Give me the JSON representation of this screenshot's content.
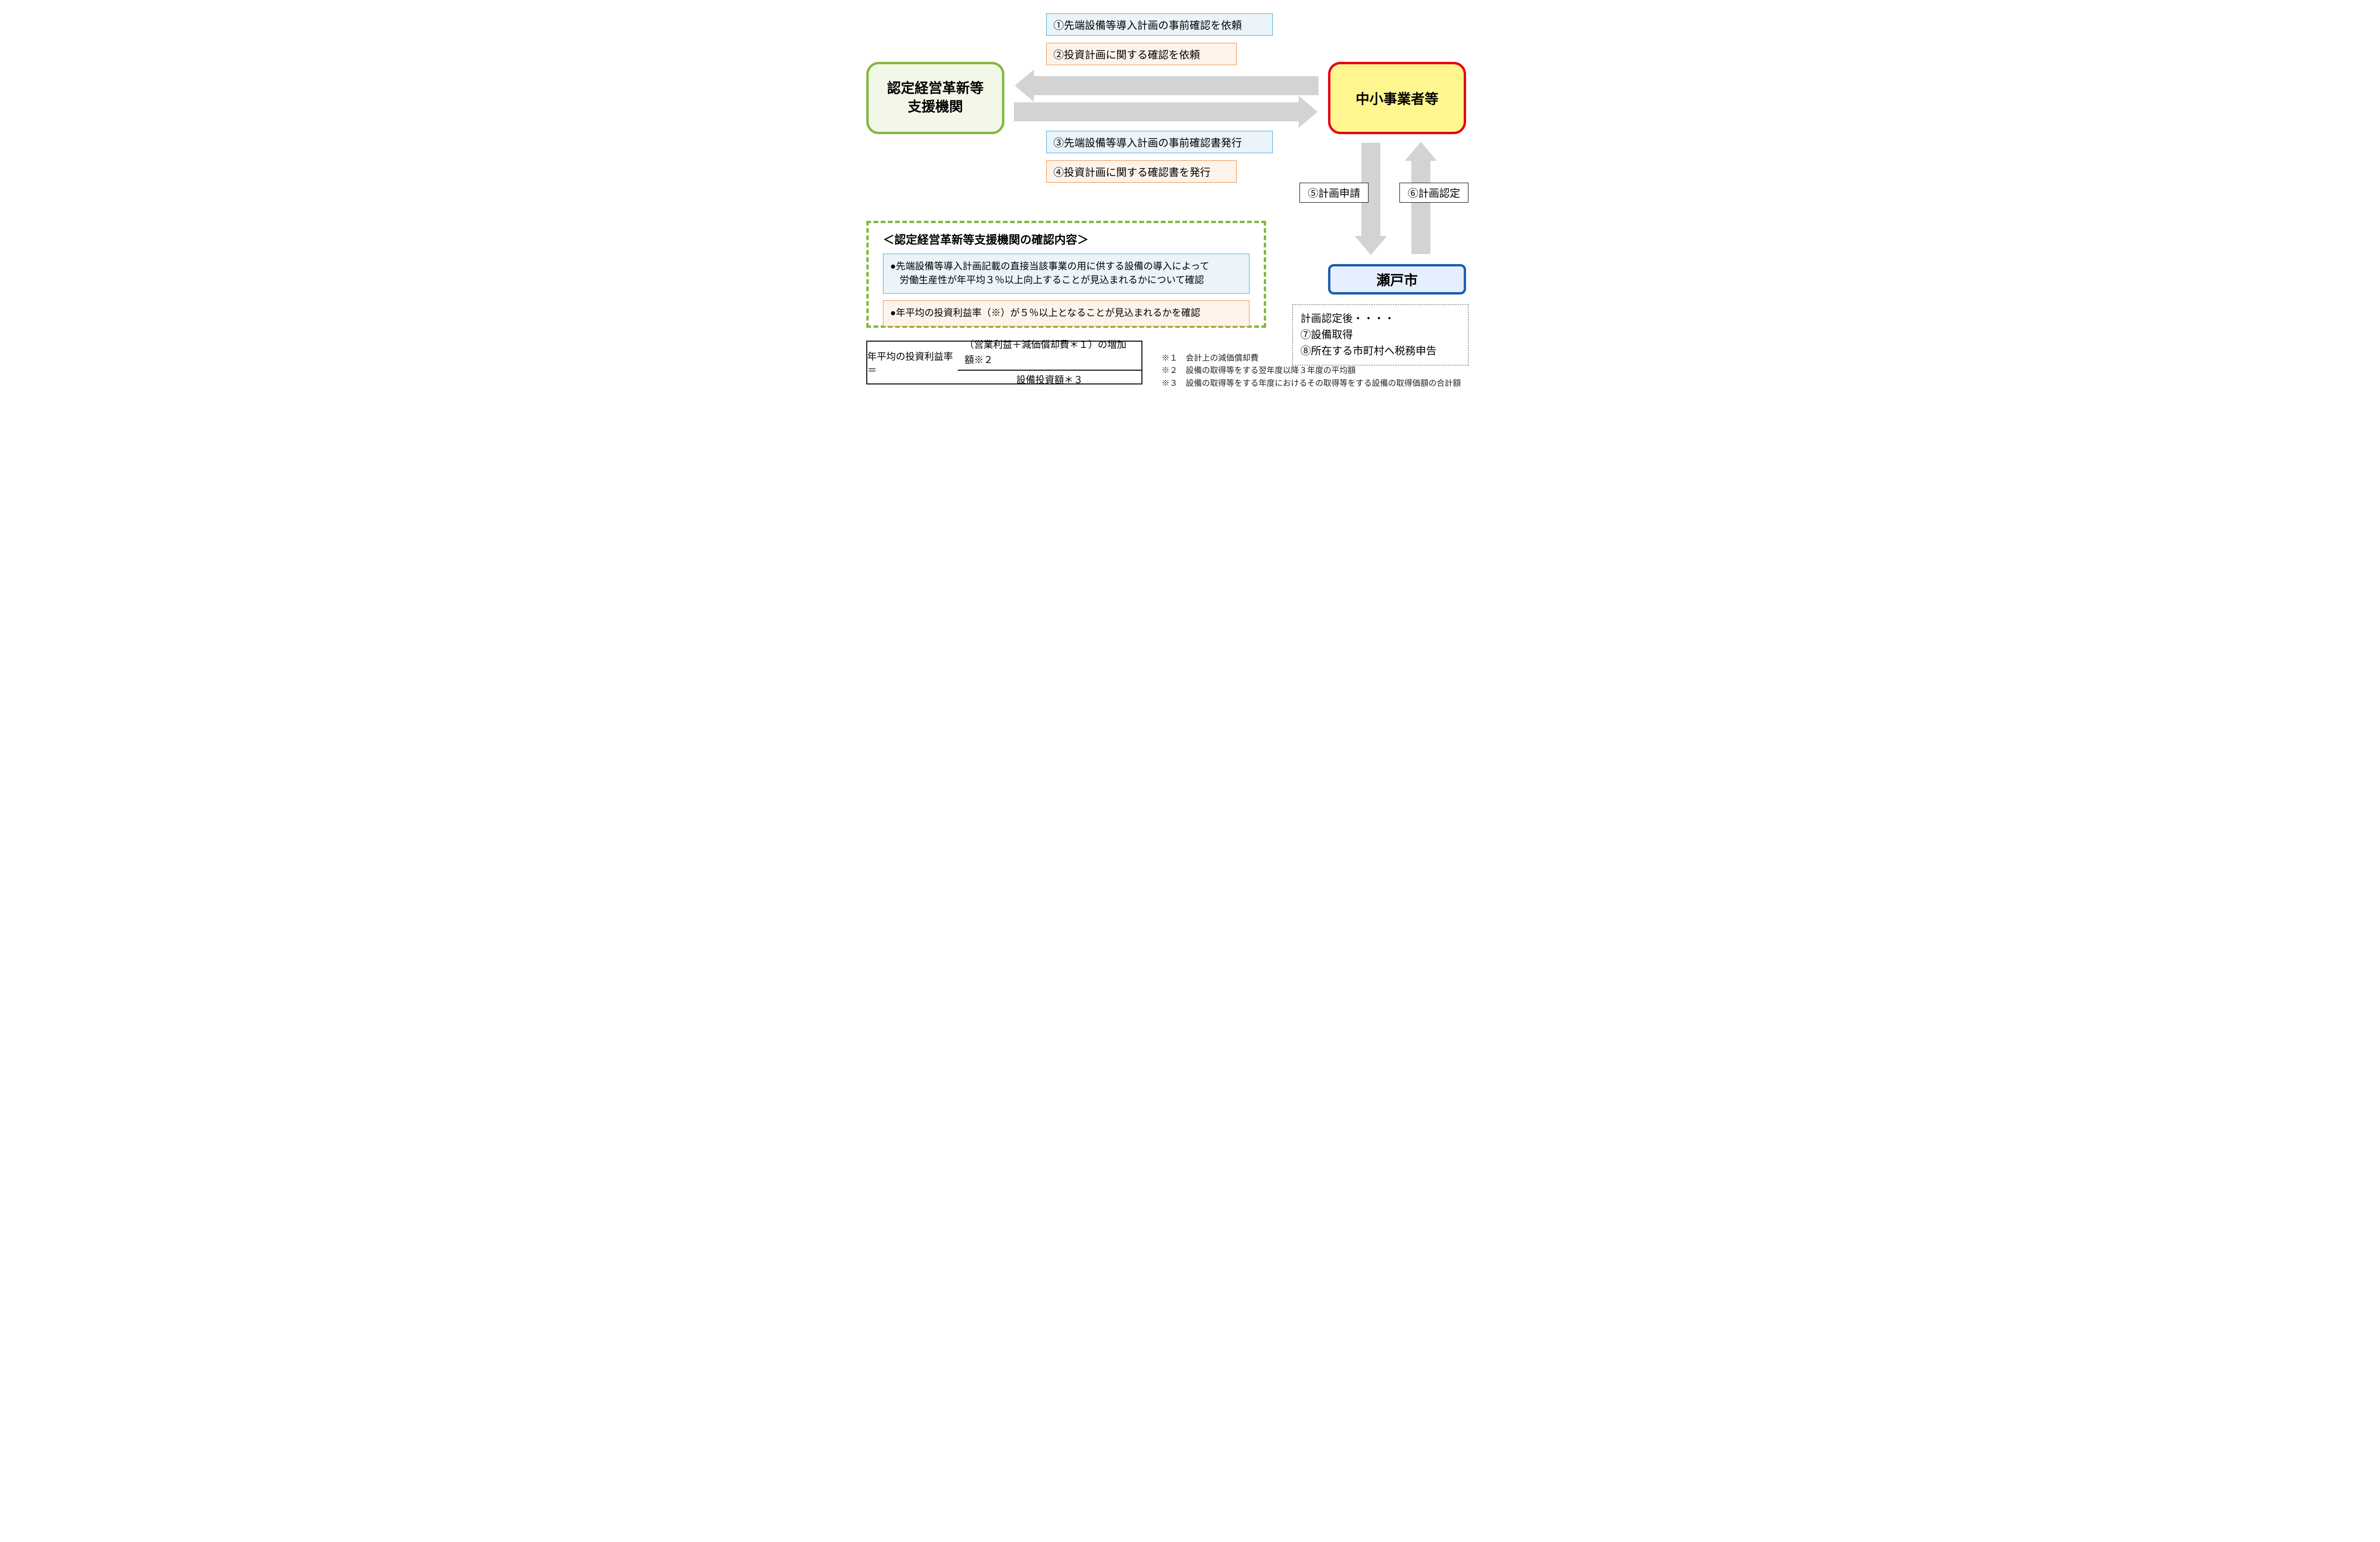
{
  "nodes": {
    "left": {
      "label": "認定経営革新等\n支援機関",
      "bg": "#f2f7e8",
      "border": "#83b83e"
    },
    "right": {
      "label": "中小事業者等",
      "bg": "#fff68f",
      "border": "#e60012"
    },
    "city": {
      "label": "瀬戸市",
      "bg": "#e6efff",
      "border": "#1c5fb0"
    }
  },
  "step_labels": {
    "s1": "①先端設備等導入計画の事前確認を依頼",
    "s2": "②投資計画に関する確認を依頼",
    "s3": "③先端設備等導入計画の事前確認書発行",
    "s4": "④投資計画に関する確認書を発行",
    "s5": "⑤計画申請",
    "s6": "⑥計画認定"
  },
  "post_steps": {
    "header": "計画認定後・・・・",
    "l1": "⑦設備取得",
    "l2": "⑧所在する市町村へ税務申告"
  },
  "green_panel": {
    "title": "＜認定経営革新等支援機関の確認内容＞",
    "note_blue_l1": "●先端設備等導入計画記載の直接当該事業の用に供する設備の導入によって",
    "note_blue_l2": "　労働生産性が年平均３％以上向上することが見込まれるかについて確認",
    "note_orange": "●年平均の投資利益率（※）が５％以上となることが見込まれるかを確認"
  },
  "formula": {
    "lhs": "年平均の投資利益率＝",
    "numerator": "（営業利益＋減価償却費＊１）の増加額※２",
    "denominator": "設備投資額＊３"
  },
  "footnotes": {
    "f1": "※１　会計上の減価償却費",
    "f2": "※２　設備の取得等をする翌年度以降３年度の平均額",
    "f3": "※３　設備の取得等をする年度におけるその取得等をする設備の取得価額の合計額"
  },
  "colors": {
    "box_blue_bg": "#eaf4f9",
    "box_blue_br": "#3aa6c9",
    "box_orange_bg": "#fdf3eb",
    "box_orange_br": "#e88b3a",
    "arrow": "#d3d3d3",
    "green_dash": "#83b83e"
  }
}
